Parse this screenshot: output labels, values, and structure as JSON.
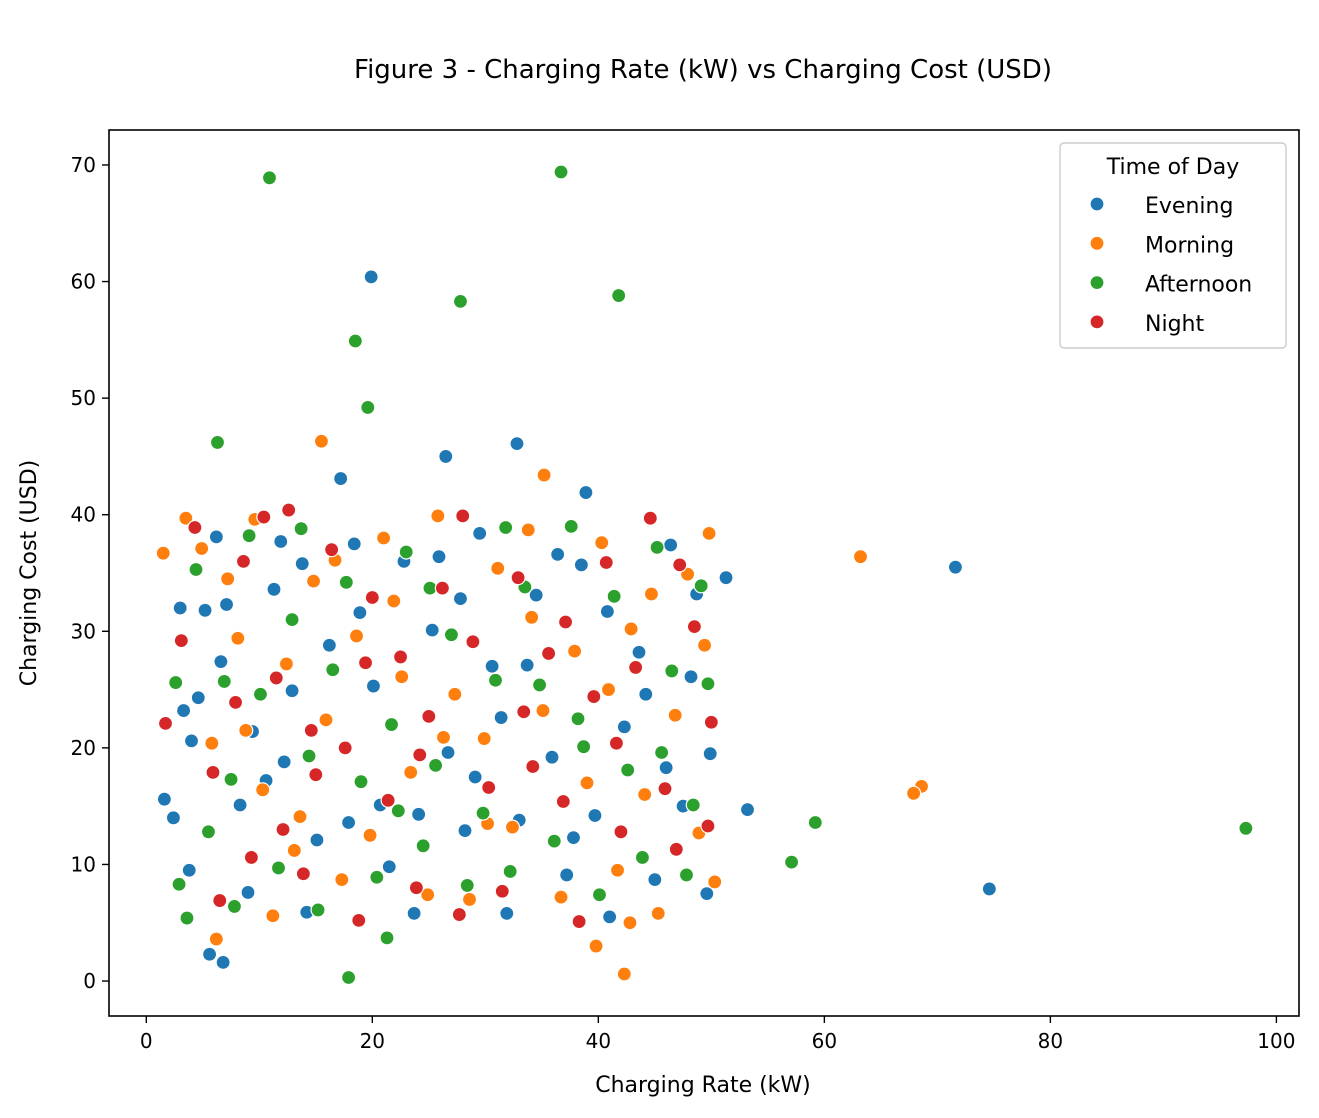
{
  "chart_data": {
    "type": "scatter",
    "title": "Figure 3 - Charging Rate (kW) vs Charging Cost (USD)",
    "xlabel": "Charging Rate (kW)",
    "ylabel": "Charging Cost (USD)",
    "xlim": [
      -3.3,
      102
    ],
    "ylim": [
      -3.0,
      73.0
    ],
    "xticks": [
      0,
      20,
      40,
      60,
      80,
      100
    ],
    "yticks": [
      0,
      10,
      20,
      30,
      40,
      50,
      60,
      70
    ],
    "grid": false,
    "legend": {
      "title": "Time of Day",
      "placement": "top-right"
    },
    "series": [
      {
        "name": "Evening",
        "color": "#1f77b4",
        "points": [
          [
            19.9,
            60.4
          ],
          [
            26.5,
            45.0
          ],
          [
            32.8,
            46.1
          ],
          [
            17.2,
            43.1
          ],
          [
            38.9,
            41.9
          ],
          [
            71.6,
            35.5
          ],
          [
            51.3,
            34.6
          ],
          [
            53.2,
            14.7
          ],
          [
            74.6,
            7.9
          ],
          [
            5.6,
            2.3
          ],
          [
            6.8,
            1.6
          ],
          [
            1.6,
            15.6
          ],
          [
            2.4,
            14.0
          ],
          [
            3.0,
            32.0
          ],
          [
            3.3,
            23.2
          ],
          [
            3.8,
            9.5
          ],
          [
            4.6,
            24.3
          ],
          [
            5.2,
            31.8
          ],
          [
            6.2,
            38.1
          ],
          [
            7.1,
            32.3
          ],
          [
            8.3,
            15.1
          ],
          [
            9.4,
            21.4
          ],
          [
            10.6,
            17.2
          ],
          [
            11.3,
            33.6
          ],
          [
            12.9,
            24.9
          ],
          [
            13.8,
            35.8
          ],
          [
            15.1,
            12.1
          ],
          [
            16.2,
            28.8
          ],
          [
            18.4,
            37.5
          ],
          [
            20.1,
            25.3
          ],
          [
            21.5,
            9.8
          ],
          [
            22.8,
            36.0
          ],
          [
            24.1,
            14.3
          ],
          [
            25.3,
            30.1
          ],
          [
            26.7,
            19.6
          ],
          [
            28.2,
            12.9
          ],
          [
            29.5,
            38.4
          ],
          [
            30.6,
            27.0
          ],
          [
            31.4,
            22.6
          ],
          [
            33.0,
            13.8
          ],
          [
            34.5,
            33.1
          ],
          [
            35.9,
            19.2
          ],
          [
            37.2,
            9.1
          ],
          [
            38.5,
            35.7
          ],
          [
            39.7,
            14.2
          ],
          [
            40.8,
            31.7
          ],
          [
            42.3,
            21.8
          ],
          [
            43.6,
            28.2
          ],
          [
            45.0,
            8.7
          ],
          [
            46.4,
            37.4
          ],
          [
            47.5,
            15.0
          ],
          [
            48.7,
            33.2
          ],
          [
            49.6,
            7.5
          ],
          [
            49.9,
            19.5
          ],
          [
            44.2,
            24.6
          ],
          [
            36.4,
            36.6
          ],
          [
            27.8,
            32.8
          ],
          [
            17.9,
            13.6
          ],
          [
            9.0,
            7.6
          ],
          [
            4.0,
            20.6
          ],
          [
            14.2,
            5.9
          ],
          [
            23.7,
            5.8
          ],
          [
            31.9,
            5.8
          ],
          [
            41.0,
            5.5
          ],
          [
            12.2,
            18.8
          ],
          [
            20.7,
            15.1
          ],
          [
            29.1,
            17.5
          ],
          [
            37.8,
            12.3
          ],
          [
            46.0,
            18.3
          ],
          [
            6.6,
            27.4
          ],
          [
            18.9,
            31.6
          ],
          [
            33.7,
            27.1
          ],
          [
            48.2,
            26.1
          ],
          [
            11.9,
            37.7
          ],
          [
            25.9,
            36.4
          ]
        ]
      },
      {
        "name": "Morning",
        "color": "#ff7f0e",
        "points": [
          [
            63.2,
            36.4
          ],
          [
            68.6,
            16.7
          ],
          [
            67.9,
            16.1
          ],
          [
            15.5,
            46.3
          ],
          [
            35.2,
            43.4
          ],
          [
            1.5,
            36.7
          ],
          [
            6.2,
            3.6
          ],
          [
            39.8,
            3.0
          ],
          [
            42.3,
            0.6
          ],
          [
            42.8,
            5.0
          ],
          [
            3.5,
            39.7
          ],
          [
            4.9,
            37.1
          ],
          [
            5.8,
            20.4
          ],
          [
            7.2,
            34.5
          ],
          [
            8.1,
            29.4
          ],
          [
            9.6,
            39.6
          ],
          [
            10.3,
            16.4
          ],
          [
            11.2,
            5.6
          ],
          [
            12.4,
            27.2
          ],
          [
            13.6,
            14.1
          ],
          [
            14.8,
            34.3
          ],
          [
            15.9,
            22.4
          ],
          [
            17.3,
            8.7
          ],
          [
            18.6,
            29.6
          ],
          [
            19.8,
            12.5
          ],
          [
            21.0,
            38.0
          ],
          [
            22.6,
            26.1
          ],
          [
            23.4,
            17.9
          ],
          [
            24.9,
            7.4
          ],
          [
            25.8,
            39.9
          ],
          [
            27.3,
            24.6
          ],
          [
            28.6,
            7.0
          ],
          [
            29.9,
            20.8
          ],
          [
            31.1,
            35.4
          ],
          [
            32.4,
            13.2
          ],
          [
            33.8,
            38.7
          ],
          [
            35.1,
            23.2
          ],
          [
            36.7,
            7.2
          ],
          [
            37.9,
            28.3
          ],
          [
            39.0,
            17.0
          ],
          [
            40.3,
            37.6
          ],
          [
            41.7,
            9.5
          ],
          [
            42.9,
            30.2
          ],
          [
            44.1,
            16.0
          ],
          [
            45.3,
            5.8
          ],
          [
            46.8,
            22.8
          ],
          [
            47.9,
            34.9
          ],
          [
            48.9,
            12.7
          ],
          [
            49.4,
            28.8
          ],
          [
            50.3,
            8.5
          ],
          [
            49.8,
            38.4
          ],
          [
            44.7,
            33.2
          ],
          [
            30.2,
            13.5
          ],
          [
            16.7,
            36.1
          ],
          [
            8.8,
            21.5
          ],
          [
            21.9,
            32.6
          ],
          [
            34.1,
            31.2
          ],
          [
            26.3,
            20.9
          ],
          [
            13.1,
            11.2
          ],
          [
            40.9,
            25.0
          ]
        ]
      },
      {
        "name": "Afternoon",
        "color": "#2ca02c",
        "points": [
          [
            10.9,
            68.9
          ],
          [
            36.7,
            69.4
          ],
          [
            27.8,
            58.3
          ],
          [
            41.8,
            58.8
          ],
          [
            18.5,
            54.9
          ],
          [
            19.6,
            49.2
          ],
          [
            6.3,
            46.2
          ],
          [
            97.3,
            13.1
          ],
          [
            59.2,
            13.6
          ],
          [
            57.1,
            10.2
          ],
          [
            17.9,
            0.3
          ],
          [
            21.3,
            3.7
          ],
          [
            2.9,
            8.3
          ],
          [
            3.6,
            5.4
          ],
          [
            4.4,
            35.3
          ],
          [
            5.5,
            12.8
          ],
          [
            6.9,
            25.7
          ],
          [
            7.8,
            6.4
          ],
          [
            9.1,
            38.2
          ],
          [
            10.1,
            24.6
          ],
          [
            11.7,
            9.7
          ],
          [
            12.9,
            31.0
          ],
          [
            14.4,
            19.3
          ],
          [
            15.2,
            6.1
          ],
          [
            16.5,
            26.7
          ],
          [
            17.7,
            34.2
          ],
          [
            19.0,
            17.1
          ],
          [
            20.4,
            8.9
          ],
          [
            21.7,
            22.0
          ],
          [
            23.0,
            36.8
          ],
          [
            24.5,
            11.6
          ],
          [
            25.6,
            18.5
          ],
          [
            27.0,
            29.7
          ],
          [
            28.4,
            8.2
          ],
          [
            29.8,
            14.4
          ],
          [
            30.9,
            25.8
          ],
          [
            32.2,
            9.4
          ],
          [
            33.5,
            33.8
          ],
          [
            34.8,
            25.4
          ],
          [
            36.1,
            12.0
          ],
          [
            37.6,
            39.0
          ],
          [
            38.7,
            20.1
          ],
          [
            40.1,
            7.4
          ],
          [
            41.4,
            33.0
          ],
          [
            42.6,
            18.1
          ],
          [
            43.9,
            10.6
          ],
          [
            45.2,
            37.2
          ],
          [
            46.5,
            26.6
          ],
          [
            47.8,
            9.1
          ],
          [
            49.1,
            33.9
          ],
          [
            49.7,
            25.5
          ],
          [
            48.4,
            15.1
          ],
          [
            25.1,
            33.7
          ],
          [
            13.7,
            38.8
          ],
          [
            31.8,
            38.9
          ],
          [
            7.5,
            17.3
          ],
          [
            22.3,
            14.6
          ],
          [
            38.2,
            22.5
          ],
          [
            45.6,
            19.6
          ],
          [
            2.6,
            25.6
          ]
        ]
      },
      {
        "name": "Night",
        "color": "#d62728",
        "points": [
          [
            1.7,
            22.1
          ],
          [
            4.3,
            38.9
          ],
          [
            5.9,
            17.9
          ],
          [
            6.5,
            6.9
          ],
          [
            7.9,
            23.9
          ],
          [
            9.3,
            10.6
          ],
          [
            10.4,
            39.8
          ],
          [
            11.5,
            26.0
          ],
          [
            12.6,
            40.4
          ],
          [
            13.9,
            9.2
          ],
          [
            15.0,
            17.7
          ],
          [
            16.4,
            37.0
          ],
          [
            17.6,
            20.0
          ],
          [
            18.8,
            5.2
          ],
          [
            20.0,
            32.9
          ],
          [
            21.4,
            15.5
          ],
          [
            22.5,
            27.8
          ],
          [
            23.9,
            8.0
          ],
          [
            25.0,
            22.7
          ],
          [
            26.2,
            33.7
          ],
          [
            27.7,
            5.7
          ],
          [
            28.9,
            29.1
          ],
          [
            30.3,
            16.6
          ],
          [
            31.5,
            7.7
          ],
          [
            32.9,
            34.6
          ],
          [
            34.2,
            18.4
          ],
          [
            35.6,
            28.1
          ],
          [
            36.9,
            15.4
          ],
          [
            38.3,
            5.1
          ],
          [
            39.6,
            24.4
          ],
          [
            40.7,
            35.9
          ],
          [
            42.0,
            12.8
          ],
          [
            43.3,
            26.9
          ],
          [
            44.6,
            39.7
          ],
          [
            45.9,
            16.5
          ],
          [
            47.2,
            35.7
          ],
          [
            48.5,
            30.4
          ],
          [
            49.7,
            13.3
          ],
          [
            50.0,
            22.2
          ],
          [
            46.9,
            11.3
          ],
          [
            3.1,
            29.2
          ],
          [
            8.6,
            36.0
          ],
          [
            14.6,
            21.5
          ],
          [
            19.4,
            27.3
          ],
          [
            24.2,
            19.4
          ],
          [
            28.0,
            39.9
          ],
          [
            33.4,
            23.1
          ],
          [
            37.1,
            30.8
          ],
          [
            41.6,
            20.4
          ],
          [
            12.1,
            13.0
          ]
        ]
      }
    ]
  }
}
